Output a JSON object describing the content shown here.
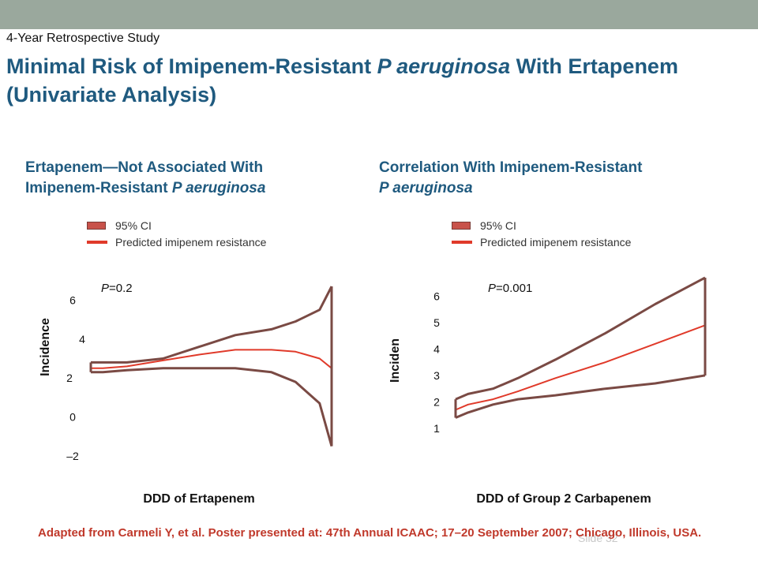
{
  "slide": {
    "supertitle": "4-Year Retrospective Study",
    "title_part1": "Minimal Risk of Imipenem-Resistant ",
    "title_italic": "P aeruginosa",
    "title_part2": " With Ertapenem (Univariate Analysis)",
    "footnote": "Adapted from Carmeli Y, et al. Poster presented at: 47th Annual ICAAC; 17–20 September 2007; Chicago, Illinois, USA.",
    "slide_number": "Slide 32"
  },
  "colors": {
    "band": "#7a4a44",
    "predicted": "#e03a2a",
    "title": "#1f5a7f",
    "footnote": "#c0392b",
    "topbar": "#9aa89d"
  },
  "chart_data": [
    {
      "type": "line",
      "subtitle_line1": "Ertapenem—Not Associated With",
      "subtitle_line2_plain": "Imipenem-Resistant ",
      "subtitle_line2_italic": "P aeruginosa",
      "legend": [
        "95% CI",
        "Predicted imipenem resistance"
      ],
      "p_label": "P",
      "p_value": "=0.2",
      "ylabel": "Incidence",
      "xlabel": "DDD of Ertapenem",
      "y_ticks": [
        "6",
        "4",
        "2",
        "0",
        "–2"
      ],
      "ylim": [
        -2,
        6.5
      ],
      "x": [
        0,
        0.05,
        0.15,
        0.3,
        0.45,
        0.6,
        0.75,
        0.85,
        0.95,
        1.0
      ],
      "series": [
        {
          "role": "upper",
          "values": [
            2.8,
            2.8,
            2.8,
            3.0,
            3.6,
            4.2,
            4.5,
            4.9,
            5.5,
            6.7
          ]
        },
        {
          "role": "predicted",
          "values": [
            2.5,
            2.5,
            2.6,
            2.9,
            3.2,
            3.45,
            3.45,
            3.35,
            3.0,
            2.5
          ]
        },
        {
          "role": "lower",
          "values": [
            2.3,
            2.3,
            2.4,
            2.5,
            2.5,
            2.5,
            2.3,
            1.8,
            0.7,
            -1.5
          ]
        }
      ]
    },
    {
      "type": "line",
      "subtitle_line1": "Correlation  With  Imipenem-Resistant",
      "subtitle_line2_plain": "",
      "subtitle_line2_italic": "P aeruginosa",
      "legend": [
        "95% CI",
        "Predicted imipenem resistance"
      ],
      "p_label": "P",
      "p_value": "=0.001",
      "ylabel": "Inciden",
      "xlabel": "DDD of Group 2 Carbapenem",
      "y_ticks": [
        "6",
        "5",
        "4",
        "3",
        "2",
        "1"
      ],
      "ylim": [
        0.7,
        6.7
      ],
      "x": [
        0,
        0.05,
        0.15,
        0.25,
        0.4,
        0.6,
        0.8,
        1.0
      ],
      "series": [
        {
          "role": "upper",
          "values": [
            2.1,
            2.3,
            2.5,
            2.9,
            3.6,
            4.6,
            5.7,
            6.7
          ]
        },
        {
          "role": "predicted",
          "values": [
            1.7,
            1.9,
            2.1,
            2.4,
            2.9,
            3.5,
            4.2,
            4.9
          ]
        },
        {
          "role": "lower",
          "values": [
            1.4,
            1.6,
            1.9,
            2.1,
            2.25,
            2.5,
            2.7,
            3.0
          ]
        }
      ]
    }
  ]
}
